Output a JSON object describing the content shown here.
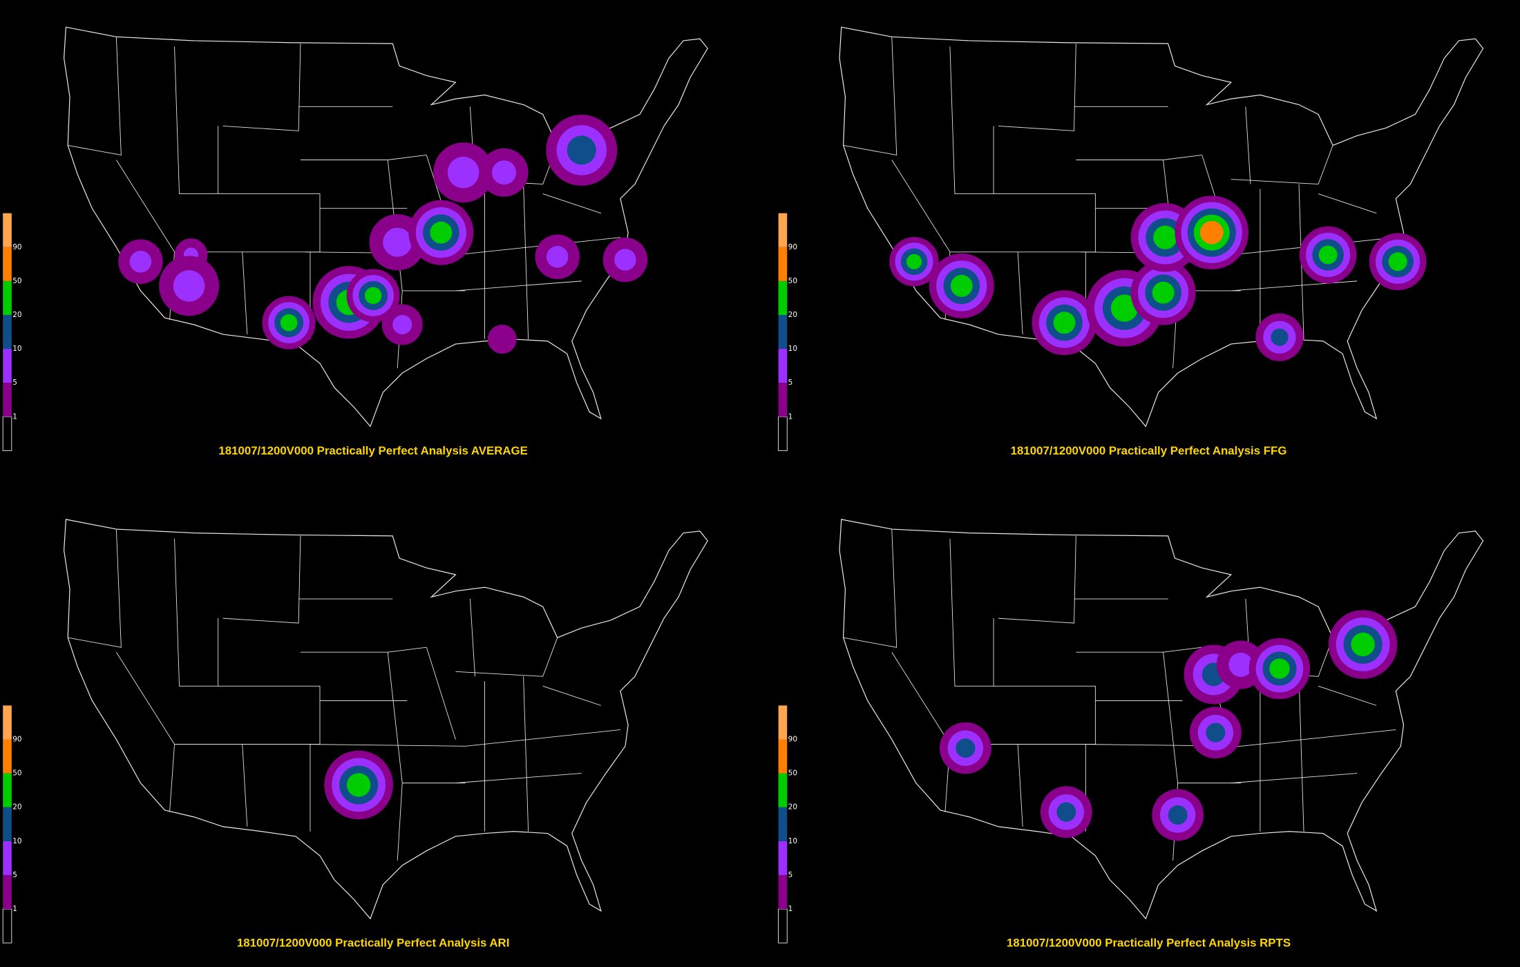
{
  "panels": [
    {
      "title": "181007/1200V000 Practically Perfect Analysis AVERAGE"
    },
    {
      "title": "181007/1200V000 Practically Perfect Analysis FFG"
    },
    {
      "title": "181007/1200V000 Practically Perfect Analysis ARI"
    },
    {
      "title": "181007/1200V000 Practically Perfect Analysis RPTS"
    }
  ],
  "colorbar": {
    "levels": [
      1,
      5,
      10,
      20,
      50,
      90
    ],
    "colors": [
      "#000000",
      "#8b008b",
      "#9b30ff",
      "#104e8b",
      "#00cd00",
      "#ff7f00",
      "#ffa54f"
    ]
  }
}
